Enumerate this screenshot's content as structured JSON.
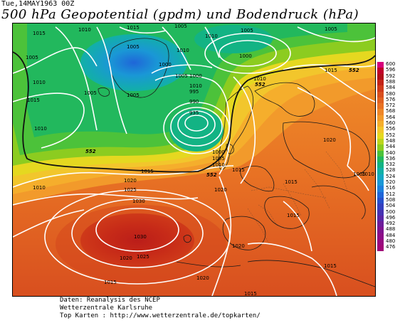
{
  "header": {
    "datetime": "Tue,14MAY1963 00Z",
    "title": "500 hPa Geopotential (gpdm) und Bodendruck (hPa)"
  },
  "map": {
    "region": "Europe / North Atlantic",
    "isobars_hpa": [
      "1015",
      "1010",
      "1015",
      "1005",
      "1005",
      "1010",
      "1005",
      "1010",
      "1015",
      "1005",
      "1005",
      "1000",
      "1005",
      "1010",
      "1005",
      "1000",
      "1005",
      "1010",
      "1000",
      "995",
      "990",
      "935",
      "1010",
      "1010",
      "1015",
      "1000",
      "1005",
      "1010",
      "1020",
      "1025",
      "1030",
      "1015",
      "1015",
      "1020",
      "1015",
      "1030",
      "1020",
      "1025",
      "1020",
      "1020",
      "1015",
      "1020",
      "1005",
      "1010",
      "1015",
      "1015",
      "1010",
      "1015"
    ],
    "geopotential_labels_gpdm": [
      "552",
      "552",
      "552",
      "552"
    ]
  },
  "legend": {
    "unit": "gpdm",
    "levels": [
      {
        "label": "600",
        "color": "#d6007c"
      },
      {
        "label": "596",
        "color": "#c0002a"
      },
      {
        "label": "592",
        "color": "#b10f1a"
      },
      {
        "label": "588",
        "color": "#c32317"
      },
      {
        "label": "584",
        "color": "#cf3a1a"
      },
      {
        "label": "580",
        "color": "#d84f1f"
      },
      {
        "label": "576",
        "color": "#e06121"
      },
      {
        "label": "572",
        "color": "#e87224"
      },
      {
        "label": "568",
        "color": "#ee8628"
      },
      {
        "label": "564",
        "color": "#f29a2b"
      },
      {
        "label": "560",
        "color": "#f5ae2c"
      },
      {
        "label": "556",
        "color": "#f2c62c"
      },
      {
        "label": "552",
        "color": "#e5d820"
      },
      {
        "label": "548",
        "color": "#bcd51c"
      },
      {
        "label": "544",
        "color": "#8ccc20"
      },
      {
        "label": "540",
        "color": "#4cc23a"
      },
      {
        "label": "536",
        "color": "#22b85d"
      },
      {
        "label": "532",
        "color": "#13b384"
      },
      {
        "label": "528",
        "color": "#12b0a6"
      },
      {
        "label": "524",
        "color": "#15a7c2"
      },
      {
        "label": "520",
        "color": "#1a97d6"
      },
      {
        "label": "516",
        "color": "#1c80dd"
      },
      {
        "label": "512",
        "color": "#1f66d8"
      },
      {
        "label": "508",
        "color": "#2750cc"
      },
      {
        "label": "504",
        "color": "#3540bf"
      },
      {
        "label": "500",
        "color": "#4732b2"
      },
      {
        "label": "496",
        "color": "#5a27a6"
      },
      {
        "label": "492",
        "color": "#6d1d9a"
      },
      {
        "label": "488",
        "color": "#80148f"
      },
      {
        "label": "484",
        "color": "#8d0f88"
      },
      {
        "label": "480",
        "color": "#980a80"
      },
      {
        "label": "476",
        "color": "#a00678"
      }
    ]
  },
  "credits": {
    "line1": "Daten: Reanalysis des NCEP",
    "line2": "Wetterzentrale Karlsruhe",
    "line3": "Top Karten :  http://www.wetterzentrale.de/topkarten/"
  }
}
